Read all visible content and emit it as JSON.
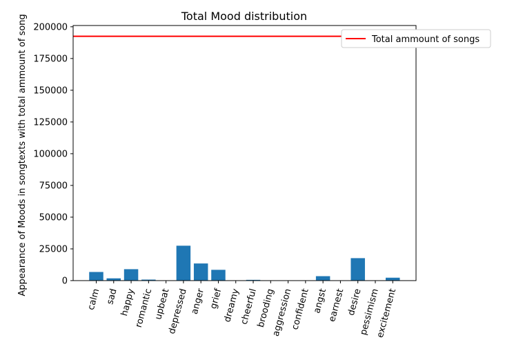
{
  "chart_data": {
    "type": "bar",
    "title": "Total Mood distribution",
    "xlabel": "",
    "ylabel": "Appearance of Moods in songtexts with total ammount of song",
    "categories": [
      "calm",
      "sad",
      "happy",
      "romantic",
      "upbeat",
      "depressed",
      "anger",
      "grief",
      "dreamy",
      "cheerful",
      "brooding",
      "aggression",
      "confident",
      "angst",
      "earnest",
      "desire",
      "pessimism",
      "excitement"
    ],
    "values": [
      6800,
      1800,
      9000,
      800,
      100,
      27500,
      13500,
      8500,
      100,
      600,
      200,
      200,
      150,
      3500,
      150,
      17700,
      100,
      2300
    ],
    "ylim": [
      0,
      201000
    ],
    "yticks": [
      0,
      25000,
      50000,
      75000,
      100000,
      125000,
      150000,
      175000,
      200000
    ],
    "reference_line": {
      "name": "Total ammount of songs",
      "value": 192500,
      "color": "#ff0000"
    },
    "bar_color": "#1f77b4",
    "legend_position": "top-right",
    "grid": false,
    "xtick_rotation": "rotated"
  }
}
